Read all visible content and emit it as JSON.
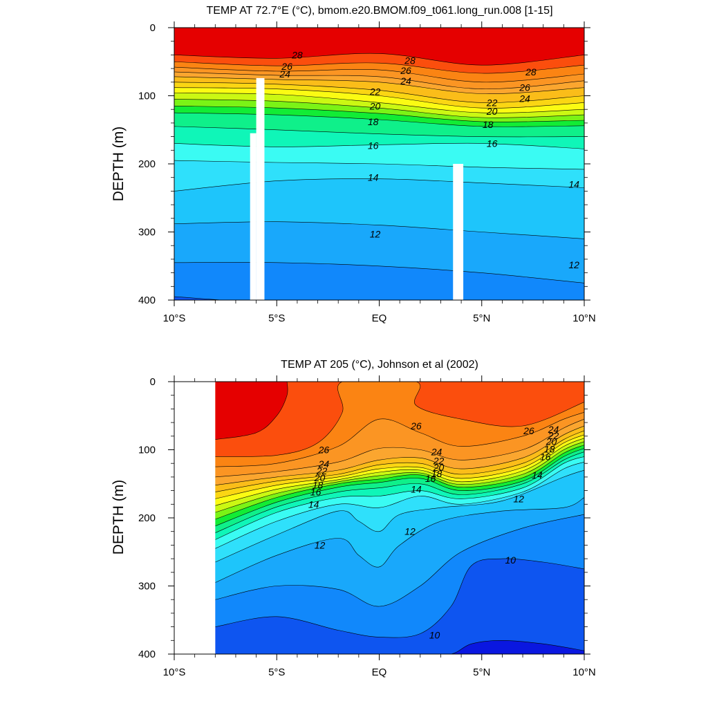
{
  "chart_data": [
    {
      "type": "heatmap",
      "title": "TEMP AT  72.7°E (°C), bmom.e20.BMOM.f09_t061.long_run.008 [1-15]",
      "xlabel": "",
      "ylabel": "DEPTH (m)",
      "xlim": [
        -10,
        10
      ],
      "ylim": [
        400,
        0
      ],
      "x_ticks": [
        {
          "value": -10,
          "label": "10°S"
        },
        {
          "value": -5,
          "label": "5°S"
        },
        {
          "value": 0,
          "label": "EQ"
        },
        {
          "value": 5,
          "label": "5°N"
        },
        {
          "value": 10,
          "label": "10°N"
        }
      ],
      "y_ticks": [
        0,
        100,
        200,
        300,
        400
      ],
      "contour_interval": 1,
      "isotherms": [
        {
          "t": 28,
          "x": [
            -10,
            -5,
            0,
            5,
            10
          ],
          "depth": [
            40,
            45,
            38,
            55,
            40
          ]
        },
        {
          "t": 27,
          "x": [
            -10,
            -5,
            0,
            5,
            10
          ],
          "depth": [
            50,
            56,
            52,
            67,
            55
          ]
        },
        {
          "t": 26,
          "x": [
            -10,
            -5,
            0,
            5,
            10
          ],
          "depth": [
            58,
            64,
            62,
            80,
            68
          ]
        },
        {
          "t": 25,
          "x": [
            -10,
            -5,
            0,
            5,
            10
          ],
          "depth": [
            65,
            70,
            72,
            90,
            78
          ]
        },
        {
          "t": 24,
          "x": [
            -10,
            -5,
            0,
            5,
            10
          ],
          "depth": [
            72,
            76,
            80,
            97,
            88
          ]
        },
        {
          "t": 23,
          "x": [
            -10,
            -5,
            0,
            5,
            10
          ],
          "depth": [
            80,
            83,
            92,
            110,
            100
          ]
        },
        {
          "t": 22,
          "x": [
            -10,
            -5,
            0,
            5,
            10
          ],
          "depth": [
            88,
            90,
            100,
            118,
            110
          ]
        },
        {
          "t": 21,
          "x": [
            -10,
            -5,
            0,
            5,
            10
          ],
          "depth": [
            96,
            98,
            110,
            125,
            120
          ]
        },
        {
          "t": 20,
          "x": [
            -10,
            -5,
            0,
            5,
            10
          ],
          "depth": [
            105,
            108,
            118,
            132,
            128
          ]
        },
        {
          "t": 19,
          "x": [
            -10,
            -5,
            0,
            5,
            10
          ],
          "depth": [
            115,
            118,
            126,
            138,
            136
          ]
        },
        {
          "t": 18,
          "x": [
            -10,
            -5,
            0,
            5,
            10
          ],
          "depth": [
            125,
            128,
            135,
            145,
            144
          ]
        },
        {
          "t": 17,
          "x": [
            -10,
            -5,
            0,
            5,
            10
          ],
          "depth": [
            145,
            150,
            156,
            160,
            160
          ]
        },
        {
          "t": 16,
          "x": [
            -10,
            -5,
            0,
            5,
            10
          ],
          "depth": [
            170,
            175,
            172,
            170,
            178
          ]
        },
        {
          "t": 15,
          "x": [
            -10,
            -5,
            0,
            5,
            10
          ],
          "depth": [
            195,
            198,
            200,
            205,
            208
          ]
        },
        {
          "t": 14,
          "x": [
            -10,
            -5,
            0,
            5,
            10
          ],
          "depth": [
            240,
            225,
            222,
            228,
            235
          ]
        },
        {
          "t": 13,
          "x": [
            -10,
            -5,
            0,
            5,
            10
          ],
          "depth": [
            288,
            285,
            290,
            300,
            310
          ]
        },
        {
          "t": 12,
          "x": [
            -10,
            -5,
            0,
            5,
            10
          ],
          "depth": [
            345,
            345,
            350,
            360,
            375
          ]
        },
        {
          "t": 11,
          "x": [
            -10,
            -5,
            0,
            5,
            10
          ],
          "depth": [
            395,
            405,
            410,
            420,
            430
          ]
        }
      ],
      "contour_labels": [
        {
          "text": "28",
          "x": -4.0,
          "depth": 40
        },
        {
          "text": "26",
          "x": -4.5,
          "depth": 57
        },
        {
          "text": "24",
          "x": -4.6,
          "depth": 68
        },
        {
          "text": "28",
          "x": 1.5,
          "depth": 48
        },
        {
          "text": "26",
          "x": 1.3,
          "depth": 63
        },
        {
          "text": "24",
          "x": 1.3,
          "depth": 78
        },
        {
          "text": "22",
          "x": -0.2,
          "depth": 94
        },
        {
          "text": "20",
          "x": -0.2,
          "depth": 115
        },
        {
          "text": "18",
          "x": -0.3,
          "depth": 138
        },
        {
          "text": "16",
          "x": -0.3,
          "depth": 173
        },
        {
          "text": "14",
          "x": -0.3,
          "depth": 220
        },
        {
          "text": "12",
          "x": -0.2,
          "depth": 303
        },
        {
          "text": "28",
          "x": 7.4,
          "depth": 65
        },
        {
          "text": "26",
          "x": 7.1,
          "depth": 88
        },
        {
          "text": "24",
          "x": 7.1,
          "depth": 104
        },
        {
          "text": "22",
          "x": 5.5,
          "depth": 110
        },
        {
          "text": "20",
          "x": 5.5,
          "depth": 123
        },
        {
          "text": "18",
          "x": 5.3,
          "depth": 142
        },
        {
          "text": "16",
          "x": 5.5,
          "depth": 170
        },
        {
          "text": "14",
          "x": 9.5,
          "depth": 230
        },
        {
          "text": "12",
          "x": 9.5,
          "depth": 348
        }
      ],
      "missing_data": [
        {
          "x0": -6.3,
          "x1": -6.0,
          "depth0": 155,
          "depth1": 400
        },
        {
          "x0": -6.0,
          "x1": -5.6,
          "depth0": 74,
          "depth1": 400
        },
        {
          "x0": 3.6,
          "x1": 4.1,
          "depth0": 200,
          "depth1": 400
        }
      ]
    },
    {
      "type": "heatmap",
      "title": "TEMP AT 205 (°C), Johnson et al (2002)",
      "xlabel": "",
      "ylabel": "DEPTH (m)",
      "xlim": [
        -10,
        10
      ],
      "ylim": [
        400,
        0
      ],
      "data_xlim": [
        -8,
        10
      ],
      "x_ticks": [
        {
          "value": -10,
          "label": "10°S"
        },
        {
          "value": -5,
          "label": "5°S"
        },
        {
          "value": 0,
          "label": "EQ"
        },
        {
          "value": 5,
          "label": "5°N"
        },
        {
          "value": 10,
          "label": "10°N"
        }
      ],
      "y_ticks": [
        0,
        100,
        200,
        300,
        400
      ],
      "contour_interval": 1,
      "isotherms": [
        {
          "t": 28,
          "x": [
            -8,
            -6,
            -5,
            -4.5,
            -4.5
          ],
          "depth": [
            85,
            75,
            50,
            20,
            0
          ]
        },
        {
          "t": 27,
          "x": [
            -8,
            -5,
            -3,
            -1.8,
            -1.8,
            1.8,
            1.8,
            4,
            7,
            10
          ],
          "depth": [
            110,
            108,
            90,
            45,
            0,
            0,
            35,
            55,
            65,
            30
          ]
        },
        {
          "t": 26,
          "x": [
            -8,
            -5,
            -2,
            0,
            2,
            4,
            7,
            9,
            10
          ],
          "depth": [
            125,
            120,
            95,
            55,
            75,
            95,
            80,
            55,
            45
          ]
        },
        {
          "t": 25,
          "x": [
            -8,
            -5,
            -2,
            0,
            2,
            4,
            7,
            9,
            10
          ],
          "depth": [
            140,
            132,
            118,
            98,
            100,
            115,
            100,
            68,
            55
          ]
        },
        {
          "t": 24,
          "x": [
            -8,
            -5,
            -2,
            0,
            2,
            4,
            7,
            9,
            10
          ],
          "depth": [
            152,
            140,
            130,
            115,
            112,
            128,
            112,
            78,
            65
          ]
        },
        {
          "t": 23,
          "x": [
            -8,
            -5,
            -2,
            0,
            2,
            4,
            7,
            9,
            10
          ],
          "depth": [
            162,
            146,
            136,
            122,
            120,
            136,
            120,
            85,
            72
          ]
        },
        {
          "t": 22,
          "x": [
            -8,
            -5,
            -2,
            0,
            2,
            4,
            7,
            9,
            10
          ],
          "depth": [
            172,
            152,
            140,
            128,
            126,
            142,
            126,
            90,
            78
          ]
        },
        {
          "t": 21,
          "x": [
            -8,
            -5,
            -2,
            0,
            2,
            4,
            7,
            9,
            10
          ],
          "depth": [
            182,
            158,
            144,
            133,
            130,
            147,
            131,
            95,
            83
          ]
        },
        {
          "t": 20,
          "x": [
            -8,
            -5,
            -2,
            0,
            2,
            4,
            7,
            9,
            10
          ],
          "depth": [
            192,
            164,
            147,
            138,
            134,
            151,
            136,
            100,
            88
          ]
        },
        {
          "t": 19,
          "x": [
            -8,
            -5,
            -2,
            0,
            2,
            4,
            7,
            9,
            10
          ],
          "depth": [
            202,
            170,
            150,
            143,
            137,
            155,
            141,
            105,
            93
          ]
        },
        {
          "t": 18,
          "x": [
            -8,
            -5,
            -2,
            0,
            2,
            4,
            7,
            9,
            10
          ],
          "depth": [
            212,
            177,
            155,
            148,
            142,
            160,
            146,
            110,
            98
          ]
        },
        {
          "t": 17,
          "x": [
            -8,
            -5,
            -2,
            0,
            2,
            4,
            7,
            9,
            10
          ],
          "depth": [
            222,
            184,
            162,
            156,
            150,
            166,
            150,
            115,
            103
          ]
        },
        {
          "t": 16,
          "x": [
            -8,
            -5,
            -2,
            0,
            2,
            4,
            7,
            9,
            10
          ],
          "depth": [
            232,
            192,
            170,
            168,
            160,
            172,
            156,
            120,
            110
          ]
        },
        {
          "t": 15,
          "x": [
            -8,
            -5,
            -2,
            0,
            2,
            4,
            7,
            9,
            10
          ],
          "depth": [
            245,
            205,
            180,
            185,
            168,
            180,
            162,
            128,
            118
          ]
        },
        {
          "t": 14,
          "x": [
            -8,
            -5,
            -2,
            -1,
            0,
            1,
            3,
            6,
            9,
            10
          ],
          "depth": [
            265,
            225,
            190,
            205,
            220,
            195,
            185,
            175,
            140,
            130
          ]
        },
        {
          "t": 13,
          "x": [
            -8,
            -5,
            -2,
            -1,
            0,
            1,
            3,
            6,
            9,
            10
          ],
          "depth": [
            295,
            255,
            230,
            255,
            272,
            240,
            205,
            190,
            185,
            170
          ]
        },
        {
          "t": 12,
          "x": [
            -8,
            -5,
            -2,
            0,
            2,
            4,
            7,
            10
          ],
          "depth": [
            320,
            300,
            305,
            330,
            300,
            250,
            215,
            195
          ]
        },
        {
          "t": 11,
          "x": [
            -8,
            -5,
            -2,
            0,
            2,
            3.5,
            4.5,
            6,
            8,
            10
          ],
          "depth": [
            360,
            345,
            365,
            375,
            370,
            330,
            270,
            260,
            265,
            275
          ]
        },
        {
          "t": 10,
          "x": [
            -8,
            -5,
            -2,
            0,
            2,
            3.5,
            4.5,
            6,
            8,
            10
          ],
          "depth": [
            400,
            400,
            400,
            400,
            400,
            400,
            385,
            380,
            385,
            395
          ]
        }
      ],
      "contour_labels": [
        {
          "text": "26",
          "x": -2.7,
          "depth": 100
        },
        {
          "text": "24",
          "x": -2.7,
          "depth": 121
        },
        {
          "text": "22",
          "x": -2.8,
          "depth": 131
        },
        {
          "text": "20",
          "x": -2.9,
          "depth": 141
        },
        {
          "text": "18",
          "x": -3.0,
          "depth": 152
        },
        {
          "text": "16",
          "x": -3.1,
          "depth": 162
        },
        {
          "text": "14",
          "x": -3.2,
          "depth": 180
        },
        {
          "text": "12",
          "x": -2.9,
          "depth": 240
        },
        {
          "text": "26",
          "x": 1.8,
          "depth": 65
        },
        {
          "text": "24",
          "x": 2.8,
          "depth": 103
        },
        {
          "text": "22",
          "x": 2.9,
          "depth": 116
        },
        {
          "text": "20",
          "x": 2.9,
          "depth": 126
        },
        {
          "text": "18",
          "x": 2.8,
          "depth": 135
        },
        {
          "text": "16",
          "x": 2.5,
          "depth": 142
        },
        {
          "text": "14",
          "x": 1.8,
          "depth": 158
        },
        {
          "text": "12",
          "x": 1.5,
          "depth": 220
        },
        {
          "text": "10",
          "x": 2.7,
          "depth": 372
        },
        {
          "text": "10",
          "x": 6.4,
          "depth": 262
        },
        {
          "text": "12",
          "x": 6.8,
          "depth": 172
        },
        {
          "text": "14",
          "x": 7.7,
          "depth": 137
        },
        {
          "text": "16",
          "x": 8.1,
          "depth": 110
        },
        {
          "text": "18",
          "x": 8.3,
          "depth": 99
        },
        {
          "text": "20",
          "x": 8.4,
          "depth": 88
        },
        {
          "text": "22",
          "x": 8.5,
          "depth": 79
        },
        {
          "text": "24",
          "x": 8.5,
          "depth": 70
        },
        {
          "text": "26",
          "x": 7.3,
          "depth": 72
        }
      ]
    }
  ],
  "colors": {
    "t9": "#0a17e0",
    "t10": "#0e55f0",
    "t11": "#1188fb",
    "t12": "#19a8fb",
    "t13": "#1ec5fb",
    "t14": "#2fe0fb",
    "t15": "#3afbf3",
    "t16": "#0ff6b8",
    "t17": "#0ff08a",
    "t18": "#12ec35",
    "t19": "#7bf316",
    "t20": "#cbf813",
    "t21": "#fbfb13",
    "t22": "#fbd613",
    "t23": "#fbbd19",
    "t24": "#fba62f",
    "t25": "#fb9523",
    "t26": "#fb8413",
    "t27": "#fb4e0d",
    "t28": "#e50000"
  }
}
